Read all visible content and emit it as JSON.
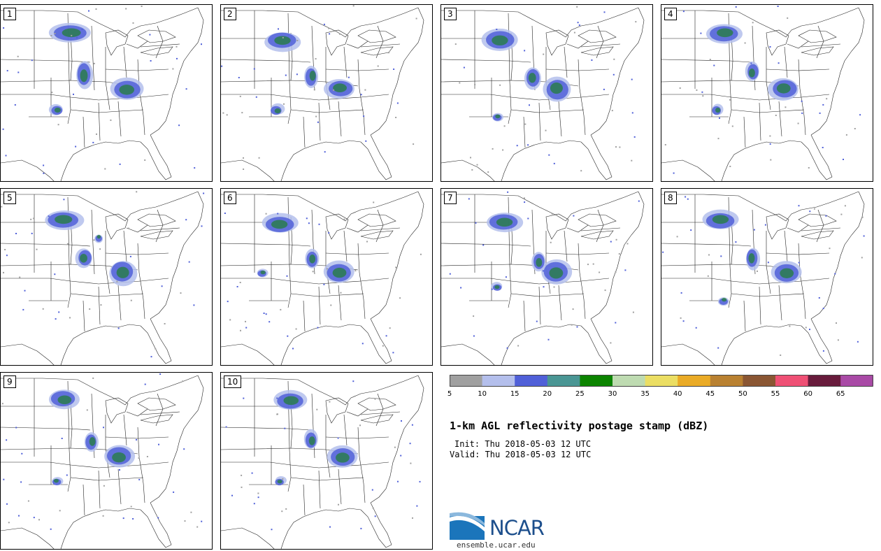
{
  "stamps": [
    {
      "label": "1"
    },
    {
      "label": "2"
    },
    {
      "label": "3"
    },
    {
      "label": "4"
    },
    {
      "label": "5"
    },
    {
      "label": "6"
    },
    {
      "label": "7"
    },
    {
      "label": "8"
    },
    {
      "label": "9"
    },
    {
      "label": "10"
    }
  ],
  "colorbar": {
    "colors": [
      "#a0a0a0",
      "#b4bfec",
      "#5060d8",
      "#4a9694",
      "#0c8400",
      "#bedbb1",
      "#ebde63",
      "#eaab26",
      "#b98131",
      "#8a5633",
      "#ef5075",
      "#681b3c",
      "#a94aa6"
    ],
    "ticks": [
      "5",
      "10",
      "15",
      "20",
      "25",
      "30",
      "35",
      "40",
      "45",
      "50",
      "55",
      "60",
      "65"
    ]
  },
  "title": "1-km AGL reflectivity postage stamp (dBZ)",
  "init": "Init: Thu 2018-05-03 12 UTC",
  "valid": "Valid: Thu 2018-05-03 12 UTC",
  "logo": {
    "text": "NCAR",
    "url": "ensemble.ucar.edu"
  }
}
